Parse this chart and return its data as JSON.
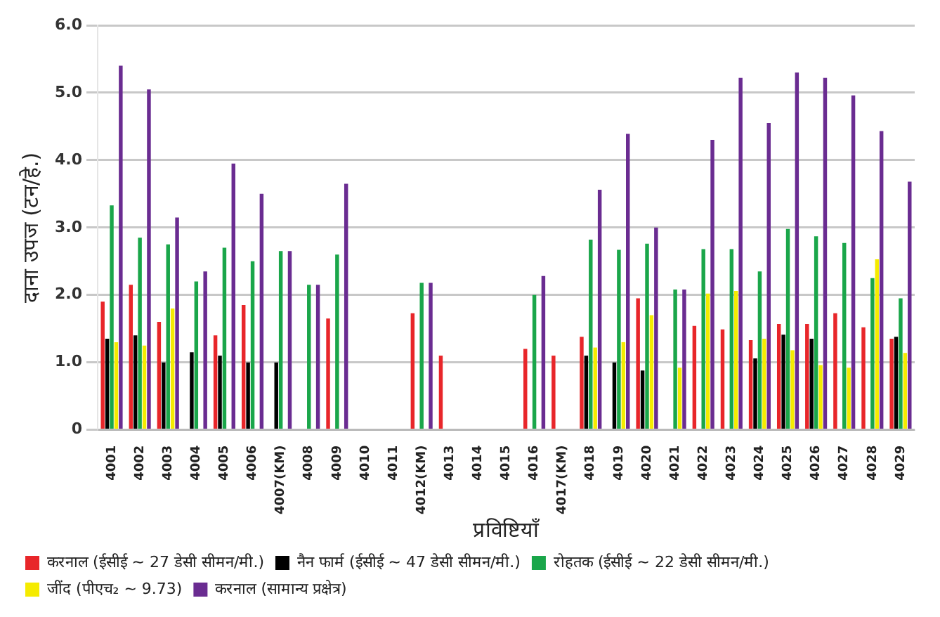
{
  "chart_data": {
    "type": "bar",
    "xlabel": "प्रविष्टियाँ",
    "ylabel": "दाना उपज (टन/हे.)",
    "categories": [
      "4001",
      "4002",
      "4003",
      "4004",
      "4005",
      "4006",
      "4007(KM)",
      "4008",
      "4009",
      "4010",
      "4011",
      "4012(KM)",
      "4013",
      "4014",
      "4015",
      "4016",
      "4017(KM)",
      "4018",
      "4019",
      "4020",
      "4021",
      "4022",
      "4023",
      "4024",
      "4025",
      "4026",
      "4027",
      "4028",
      "4029"
    ],
    "series": [
      {
        "name": "करनाल (ईसीई ~ 27 डेसी सीमन/मी.)",
        "color": "#e8262a",
        "values": [
          1.9,
          2.15,
          1.6,
          null,
          1.4,
          1.85,
          null,
          null,
          1.65,
          null,
          null,
          1.73,
          1.1,
          null,
          null,
          1.2,
          1.1,
          1.38,
          null,
          1.95,
          null,
          1.54,
          1.49,
          1.33,
          1.57,
          1.57,
          1.73,
          1.52,
          1.35
        ]
      },
      {
        "name": "नैन फार्म (ईसीई ~ 47 डेसी सीमन/मी.)",
        "color": "#000000",
        "values": [
          1.35,
          1.4,
          1.0,
          1.15,
          1.1,
          1.0,
          1.0,
          null,
          null,
          null,
          null,
          null,
          null,
          null,
          null,
          null,
          null,
          1.1,
          1.0,
          0.88,
          null,
          null,
          null,
          1.06,
          1.41,
          1.35,
          null,
          null,
          1.38
        ]
      },
      {
        "name": "रोहतक (ईसीई ~ 22 डेसी सीमन/मी.)",
        "color": "#1aa64a",
        "values": [
          3.33,
          2.85,
          2.75,
          2.2,
          2.7,
          2.5,
          2.65,
          2.15,
          2.6,
          null,
          null,
          2.18,
          null,
          null,
          null,
          2.0,
          null,
          2.82,
          2.67,
          2.76,
          2.08,
          2.68,
          2.68,
          2.35,
          2.98,
          2.87,
          2.77,
          2.25,
          1.95
        ]
      },
      {
        "name": "जींद (पीएच₂ ~ 9.73)",
        "color": "#f5eb00",
        "values": [
          1.3,
          1.25,
          1.8,
          null,
          null,
          null,
          null,
          null,
          null,
          null,
          null,
          null,
          null,
          null,
          null,
          null,
          null,
          1.22,
          1.3,
          1.7,
          0.92,
          2.02,
          2.06,
          1.35,
          1.18,
          0.96,
          0.92,
          2.53,
          1.14
        ]
      },
      {
        "name": "करनाल (सामान्य प्रक्षेत्र)",
        "color": "#6a2c91",
        "values": [
          5.4,
          5.05,
          3.15,
          2.35,
          3.95,
          3.5,
          2.65,
          2.15,
          3.65,
          null,
          null,
          2.18,
          null,
          null,
          null,
          2.28,
          null,
          3.56,
          4.39,
          3.0,
          2.08,
          4.3,
          5.22,
          4.55,
          5.3,
          5.22,
          4.96,
          4.43,
          3.68
        ]
      }
    ],
    "ylim": [
      0,
      6
    ],
    "yticks": [
      0,
      {
        "value": 1,
        "label": "1.0"
      },
      {
        "value": 2,
        "label": "2.0"
      },
      {
        "value": 3,
        "label": "3.0"
      },
      {
        "value": 4,
        "label": "4.0"
      },
      {
        "value": 5,
        "label": "5.0"
      },
      {
        "value": 6,
        "label": "6.0"
      }
    ],
    "grid": "y",
    "legend": "bottom"
  }
}
